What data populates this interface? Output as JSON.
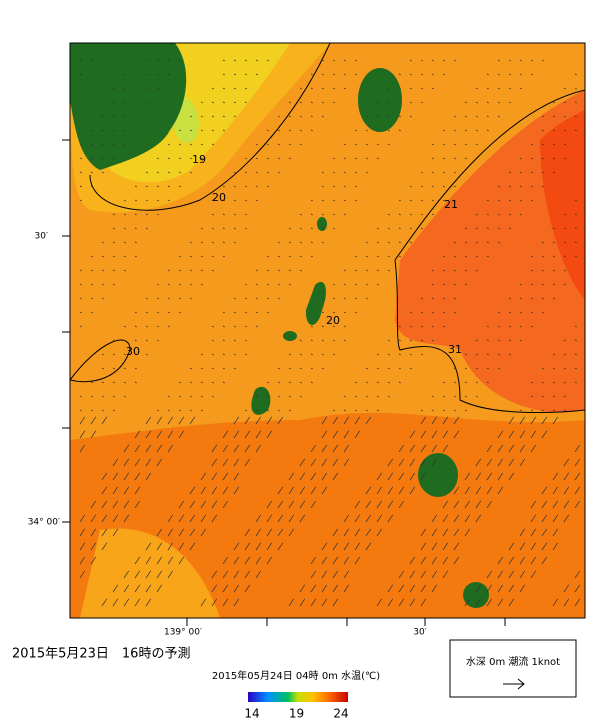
{
  "map": {
    "y_labels": [
      "30′",
      "34° 00′"
    ],
    "x_labels": [
      "139° 00′",
      "30′"
    ],
    "contour_labels": [
      "19",
      "20",
      "21",
      "20",
      "30",
      "31"
    ]
  },
  "caption": "2015年5月23日　16時の予測",
  "colorbar": {
    "title": "2015年05月24日 04時 0m 水温(℃)",
    "ticks": [
      14,
      19,
      24
    ]
  },
  "legend": {
    "text": "水深 0m 潮流 1knot"
  }
}
